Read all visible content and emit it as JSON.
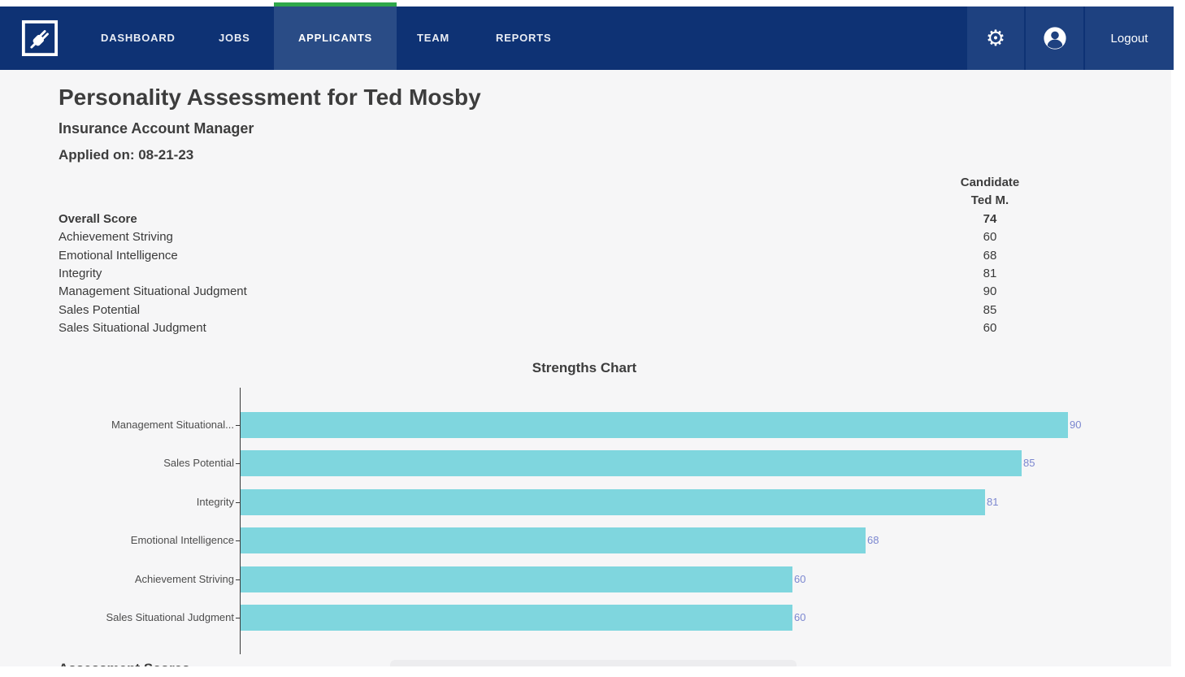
{
  "nav": {
    "items": [
      {
        "label": "DASHBOARD"
      },
      {
        "label": "JOBS"
      },
      {
        "label": "APPLICANTS"
      },
      {
        "label": "TEAM"
      },
      {
        "label": "REPORTS"
      }
    ],
    "active_item": "APPLICANTS",
    "logout_label": "Logout",
    "icons": {
      "logo": "plug-logo",
      "settings": "gear-icon",
      "settings_glyph": "⚙",
      "account": "user-circle-icon"
    },
    "colors": {
      "navbar": "#0e3274",
      "active_tab": "#2a4c86",
      "accent_green": "#2fa84b",
      "right_cell": "#1e4180"
    }
  },
  "header": {
    "title": "Personality Assessment for Ted Mosby",
    "job_title": "Insurance Account Manager",
    "applied_on": "Applied on: 08-21-23"
  },
  "score_table": {
    "column_header_line1": "Candidate",
    "column_header_line2": "Ted M.",
    "rows": [
      {
        "label": "Overall Score",
        "value": "74",
        "bold": true
      },
      {
        "label": "Achievement Striving",
        "value": "60",
        "bold": false
      },
      {
        "label": "Emotional Intelligence",
        "value": "68",
        "bold": false
      },
      {
        "label": "Integrity",
        "value": "81",
        "bold": false
      },
      {
        "label": "Management Situational Judgment",
        "value": "90",
        "bold": false
      },
      {
        "label": "Sales Potential",
        "value": "85",
        "bold": false
      },
      {
        "label": "Sales Situational Judgment",
        "value": "60",
        "bold": false
      }
    ]
  },
  "chart_data": {
    "type": "bar",
    "orientation": "horizontal",
    "title": "Strengths Chart",
    "categories": [
      "Management Situational...",
      "Sales Potential",
      "Integrity",
      "Emotional Intelligence",
      "Achievement Striving",
      "Sales Situational Judgment"
    ],
    "values": [
      90,
      85,
      81,
      68,
      60,
      60
    ],
    "value_labels": [
      "90",
      "85",
      "81",
      "68",
      "60",
      "60"
    ],
    "xlim": [
      0,
      90
    ],
    "grid": false,
    "bar_color": "#7fd6de",
    "value_label_color": "#7b87d0",
    "background": "#f6f6f7"
  },
  "bottom": {
    "partial_heading": "Assessment Scores"
  }
}
